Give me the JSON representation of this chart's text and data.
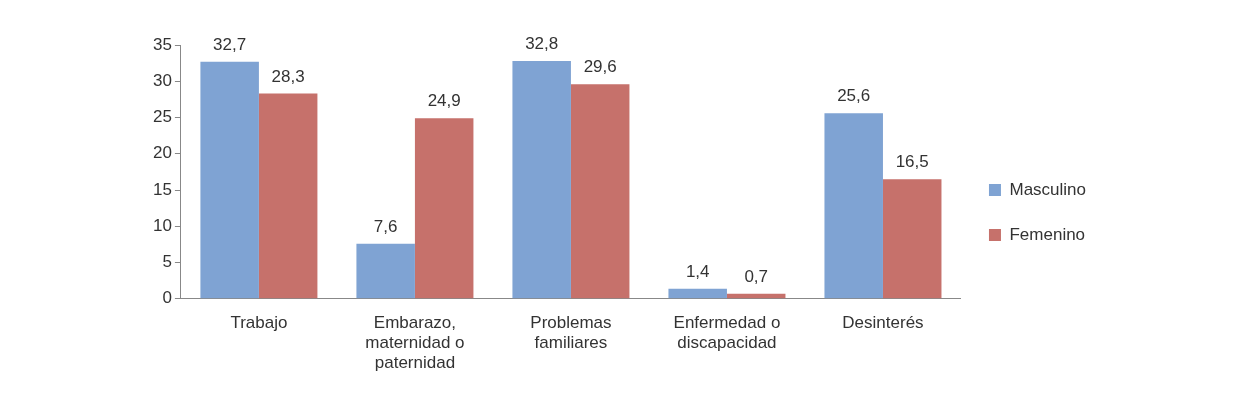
{
  "chart_data": {
    "type": "bar",
    "categories": [
      "Trabajo",
      "Embarazo, maternidad o paternidad",
      "Problemas familiares",
      "Enfermedad o discapacidad",
      "Desinterés"
    ],
    "series": [
      {
        "name": "Masculino",
        "color": "#7fa3d3",
        "values": [
          32.7,
          7.6,
          32.8,
          1.4,
          25.6
        ],
        "value_labels": [
          "32,7",
          "7,6",
          "32,8",
          "1,4",
          "25,6"
        ]
      },
      {
        "name": "Femenino",
        "color": "#c6716b",
        "values": [
          28.3,
          24.9,
          29.6,
          0.7,
          16.5
        ],
        "value_labels": [
          "28,3",
          "24,9",
          "29,6",
          "0,7",
          "16,5"
        ]
      }
    ],
    "ylim": [
      0,
      35
    ],
    "yticks": [
      0,
      5,
      10,
      15,
      20,
      25,
      30,
      35
    ],
    "grid": false,
    "legend": "right"
  }
}
